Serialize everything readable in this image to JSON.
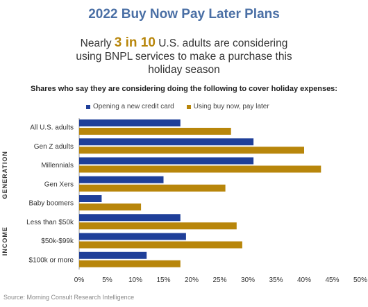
{
  "title": "2022 Buy Now Pay Later Plans",
  "headline": {
    "pre": "Nearly ",
    "highlight": "3 in 10",
    "post": " U.S. adults are considering using BNPL services to make a purchase this holiday season"
  },
  "source": "Source: Morning Consult Research Intelligence",
  "colors": {
    "credit_card": "#1f3f99",
    "bnpl": "#b8860b",
    "highlight": "#b8860b",
    "title": "#4a6fa5"
  },
  "chart_data": {
    "type": "bar",
    "orientation": "horizontal",
    "title": "Shares who say they are considering doing the following to cover holiday expenses:",
    "categories": [
      "All U.S. adults",
      "Gen Z adults",
      "Millennials",
      "Gen Xers",
      "Baby boomers",
      "Less than $50k",
      "$50k-$99k",
      "$100k or more"
    ],
    "groups": [
      {
        "label": "GENERATION",
        "categories": [
          "Gen Z adults",
          "Millennials",
          "Gen Xers",
          "Baby boomers"
        ]
      },
      {
        "label": "INCOME",
        "categories": [
          "Less than $50k",
          "$50k-$99k",
          "$100k or more"
        ]
      }
    ],
    "series": [
      {
        "name": "Opening a new credit card",
        "values": [
          18,
          31,
          31,
          15,
          4,
          18,
          19,
          12
        ]
      },
      {
        "name": "Using buy now, pay later",
        "values": [
          27,
          40,
          43,
          26,
          11,
          28,
          29,
          18
        ]
      }
    ],
    "xlim": [
      0,
      50
    ],
    "xticks": [
      "0%",
      "5%",
      "10%",
      "15%",
      "20%",
      "25%",
      "30%",
      "35%",
      "40%",
      "45%",
      "50%"
    ],
    "legend_position": "top",
    "grid": false
  }
}
